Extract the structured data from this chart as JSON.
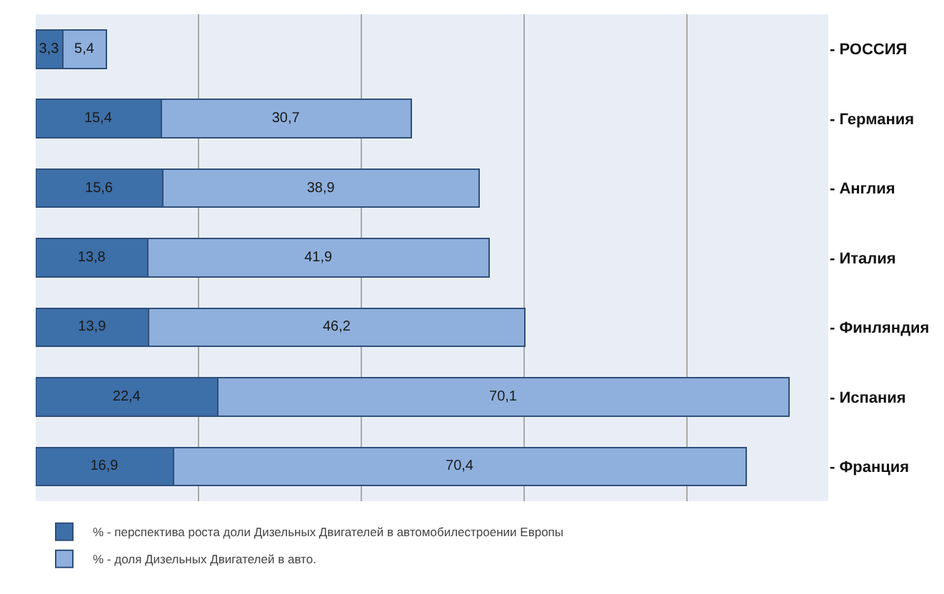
{
  "chart_data": {
    "type": "bar",
    "orientation": "horizontal",
    "stacked": true,
    "grid": "x",
    "legend": "bottom",
    "categories": [
      "- РОССИЯ",
      "- Германия",
      "- Англия",
      "- Италия",
      "- Финляндия",
      "- Испания",
      "- Франция"
    ],
    "series": [
      {
        "name": "% - перспектива роста доли Дизельных Двигателей в автомобилестроении Европы",
        "color": "#3d6fa8",
        "values": [
          3.3,
          15.4,
          15.6,
          13.8,
          13.9,
          22.4,
          16.9
        ],
        "value_labels": [
          "3,3",
          "15,4",
          "15,6",
          "13,8",
          "13,9",
          "22,4",
          "16,9"
        ]
      },
      {
        "name": "% - доля Дизельных Двигателей в авто.",
        "color": "#8fb0dd",
        "values": [
          5.4,
          30.7,
          38.9,
          41.9,
          46.2,
          70.1,
          70.4
        ],
        "value_labels": [
          "5,4",
          "30,7",
          "38,9",
          "41,9",
          "46,2",
          "70,1",
          "70,4"
        ]
      }
    ],
    "tick_labels": "y"
  }
}
